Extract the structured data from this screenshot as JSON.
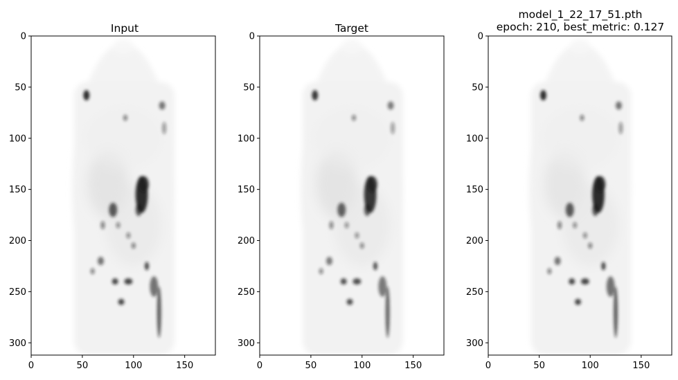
{
  "panels": [
    {
      "title_lines": [
        "Input"
      ]
    },
    {
      "title_lines": [
        "Target"
      ]
    },
    {
      "title_lines": [
        "model_1_22_17_51.pth",
        "epoch: 210, best_metric: 0.127"
      ]
    }
  ],
  "axes": {
    "x_ticks": [
      "0",
      "50",
      "100",
      "150"
    ],
    "y_ticks": [
      "0",
      "50",
      "100",
      "150",
      "200",
      "250",
      "300"
    ]
  },
  "image_description": {
    "colormap": "gray_r",
    "content": "coronal PET-like body scan slices, dark blobs mark high uptake regions",
    "xlim": [
      0,
      180
    ],
    "ylim": [
      312,
      0
    ]
  },
  "colors": {
    "axis": "#000000",
    "background": "#ffffff",
    "body_fill": "#f2f2f2",
    "organ_mid": "#d9d9d9",
    "hotspot": "#1a1a1a"
  }
}
